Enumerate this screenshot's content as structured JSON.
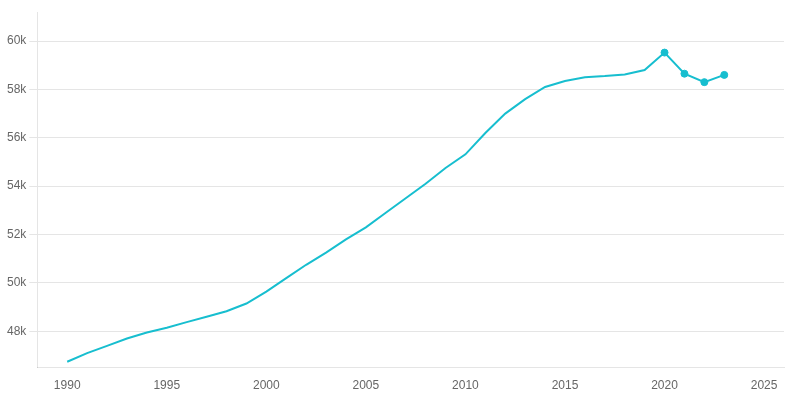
{
  "chart_data": {
    "type": "line",
    "x": [
      1990,
      1991,
      1992,
      1993,
      1994,
      1995,
      1996,
      1997,
      1998,
      1999,
      2000,
      2001,
      2002,
      2003,
      2004,
      2005,
      2006,
      2007,
      2008,
      2009,
      2010,
      2011,
      2012,
      2013,
      2014,
      2015,
      2016,
      2017,
      2018,
      2019,
      2020,
      2021,
      2022,
      2023
    ],
    "series": [
      {
        "color": "#17becf",
        "line_style": "solid",
        "values": [
          46742,
          47100,
          47400,
          47700,
          47950,
          48150,
          48380,
          48600,
          48830,
          49150,
          49644,
          50200,
          50750,
          51250,
          51800,
          52300,
          52900,
          53500,
          54100,
          54750,
          55316,
          56200,
          57000,
          57600,
          58100,
          58350,
          58500,
          58550,
          58620,
          58800,
          59522,
          58650,
          58300,
          58600
        ]
      },
      {
        "type": "scatter",
        "color": "#17becf",
        "marker": "circle",
        "values": [
          null,
          null,
          null,
          null,
          null,
          null,
          null,
          null,
          null,
          null,
          null,
          null,
          null,
          null,
          null,
          null,
          null,
          null,
          null,
          null,
          null,
          null,
          null,
          null,
          null,
          null,
          null,
          null,
          null,
          null,
          59522,
          58650,
          58300,
          58600
        ]
      }
    ],
    "xlim": [
      1988.5,
      2026
    ],
    "xticks": [
      1990,
      1995,
      2000,
      2005,
      2010,
      2015,
      2020,
      2025
    ],
    "ylim": [
      46500,
      61200
    ],
    "yticks": [
      {
        "value": 48000,
        "label": "48k"
      },
      {
        "value": 50000,
        "label": "50k"
      },
      {
        "value": 52000,
        "label": "52k"
      },
      {
        "value": 54000,
        "label": "54k"
      },
      {
        "value": 56000,
        "label": "56k"
      },
      {
        "value": 58000,
        "label": "58k"
      },
      {
        "value": 60000,
        "label": "60k"
      }
    ],
    "grid": "y"
  }
}
